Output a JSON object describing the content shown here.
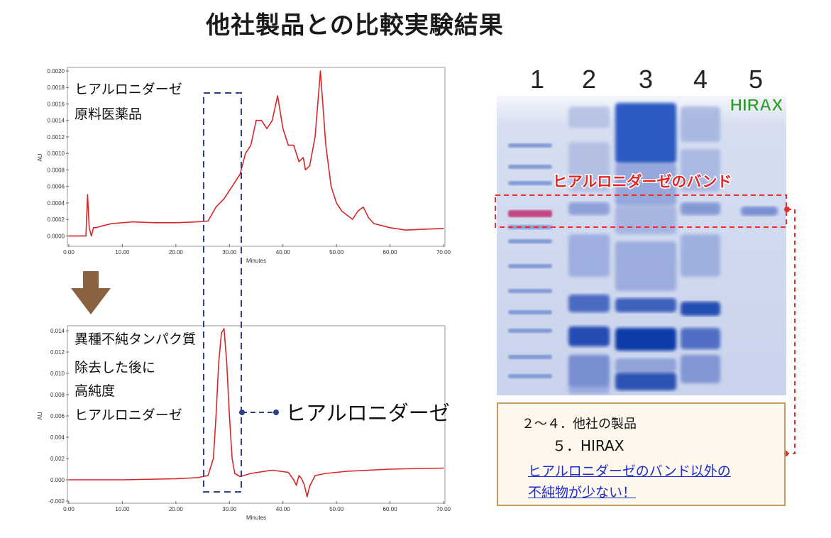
{
  "page": {
    "title": "他社製品との比較実験結果"
  },
  "chromatograms": {
    "top": {
      "label1": "ヒアルロニダーゼ",
      "label2": "原料医薬品"
    },
    "bottom": {
      "label1": "異種不純タンパク質",
      "label2": "除去した後に",
      "label3": "高純度",
      "label4": "ヒアルロニダーゼ"
    },
    "peak_label": "ヒアルロニダーゼ"
  },
  "gel": {
    "lanes": [
      "1",
      "2",
      "3",
      "4",
      "5"
    ],
    "hirax_label": "HIRAX",
    "band_label": "ヒアルロニダーゼのバンド"
  },
  "caption": {
    "line1": "２～４．他社の製品",
    "line2": "５．HIRAX",
    "note1": "ヒアルロニダーゼのバンド以外の",
    "note2": "不純物が少ない！"
  },
  "colors": {
    "trace": "#d62728",
    "dash": "#2b3f8c",
    "hirax": "#2e9e2e",
    "band_box": "#e03030",
    "arrow": "#8b6240"
  },
  "icons": {
    "down_arrow": "down-arrow-icon"
  },
  "chart_data": [
    {
      "type": "line",
      "xlabel": "Minutes",
      "ylabel": "AU",
      "xlim": [
        0,
        70
      ],
      "ylim": [
        -0.0001,
        0.002
      ],
      "x_ticks": [
        "0.00",
        "10.00",
        "20.00",
        "30.00",
        "40.00",
        "50.00",
        "60.00",
        "70.00"
      ],
      "y_ticks": [
        "0.0000",
        "0.0002",
        "0.0004",
        "0.0006",
        "0.0008",
        "0.0010",
        "0.0012",
        "0.0014",
        "0.0016",
        "0.0018",
        "0.0020"
      ],
      "grid": false,
      "series": [
        {
          "x": [
            0,
            3.2,
            3.5,
            3.8,
            4.2,
            4.6,
            5,
            8,
            12,
            16,
            20,
            24,
            26,
            27.5,
            29,
            30.5,
            32,
            33,
            34,
            35,
            36,
            37,
            38,
            39,
            40,
            41,
            42,
            43,
            43.8,
            44.2,
            45,
            46,
            47,
            48,
            49,
            50,
            51,
            52,
            53,
            54,
            55,
            56,
            57,
            60,
            63,
            66,
            70
          ],
          "y": [
            0.0,
            0.0,
            0.0005,
            0.0001,
            0.0,
            0.0001,
            0.0001,
            0.00015,
            0.00017,
            0.00016,
            0.00016,
            0.00017,
            0.00018,
            0.00035,
            0.00045,
            0.0006,
            0.00075,
            0.001,
            0.0011,
            0.0014,
            0.0014,
            0.0013,
            0.0014,
            0.0017,
            0.0013,
            0.0011,
            0.0011,
            0.0009,
            0.00095,
            0.0008,
            0.00085,
            0.0012,
            0.002,
            0.0011,
            0.0006,
            0.0004,
            0.0003,
            0.00025,
            0.0002,
            0.0003,
            0.00035,
            0.00022,
            0.00015,
            0.0001,
            7e-05,
            8e-05,
            9e-05
          ]
        }
      ]
    },
    {
      "type": "line",
      "xlabel": "Minutes",
      "ylabel": "AU",
      "xlim": [
        0,
        70
      ],
      "ylim": [
        -0.002,
        0.014
      ],
      "x_ticks": [
        "0.00",
        "10.00",
        "20.00",
        "30.00",
        "40.00",
        "50.00",
        "60.00",
        "70.00"
      ],
      "y_ticks": [
        "-0.002",
        "0.000",
        "0.002",
        "0.004",
        "0.006",
        "0.008",
        "0.010",
        "0.012",
        "0.014"
      ],
      "grid": false,
      "series": [
        {
          "x": [
            0,
            10,
            20,
            24,
            26,
            27,
            27.5,
            28,
            28.5,
            29,
            29.5,
            30,
            30.5,
            31,
            32,
            34,
            38,
            41,
            42,
            42.5,
            43,
            43.5,
            44,
            44.5,
            45,
            46,
            48,
            52,
            60,
            70
          ],
          "y": [
            0.0,
            0.0,
            0.0001,
            0.0002,
            0.0004,
            0.002,
            0.006,
            0.011,
            0.0138,
            0.0142,
            0.011,
            0.006,
            0.002,
            0.0006,
            0.0003,
            0.0006,
            0.0009,
            0.0007,
            0.0,
            -0.0005,
            0.0004,
            0.0001,
            -0.0005,
            -0.0016,
            -0.0006,
            0.0004,
            0.0006,
            0.0008,
            0.001,
            0.0011
          ]
        }
      ]
    }
  ]
}
